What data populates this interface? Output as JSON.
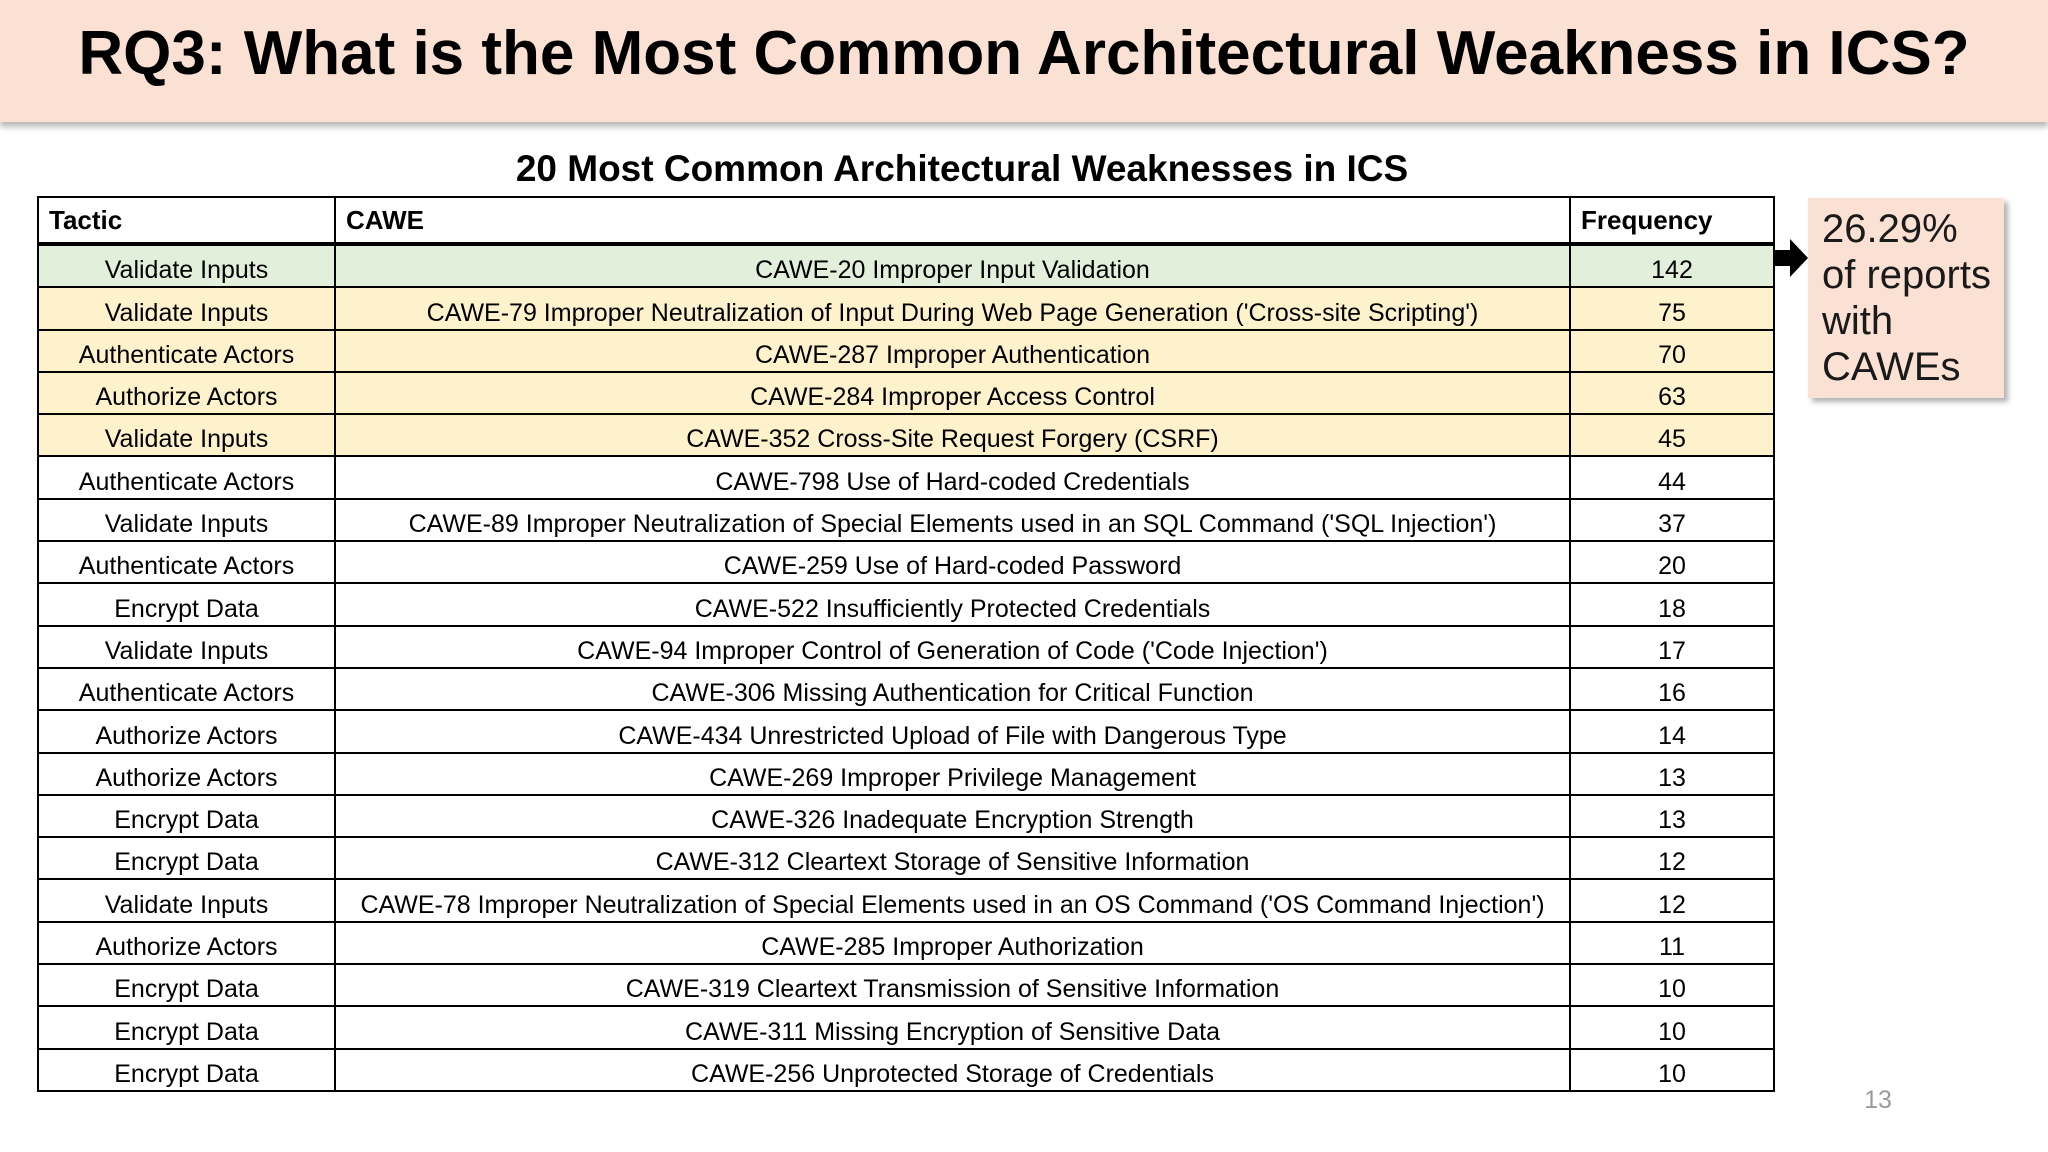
{
  "slide": {
    "title": "RQ3: What is the Most Common Architectural Weakness in ICS?",
    "page_number": "13"
  },
  "table": {
    "caption": "20 Most Common Architectural Weaknesses in ICS",
    "headers": [
      "Tactic",
      "CAWE",
      "Frequency"
    ],
    "rows": [
      {
        "tactic": "Validate Inputs",
        "cawe": "CAWE-20 Improper Input Validation",
        "frequency": "142",
        "highlight": "green"
      },
      {
        "tactic": "Validate Inputs",
        "cawe": "CAWE-79 Improper Neutralization of Input During Web Page Generation ('Cross-site Scripting')",
        "frequency": "75",
        "highlight": "yellow"
      },
      {
        "tactic": "Authenticate Actors",
        "cawe": "CAWE-287 Improper Authentication",
        "frequency": "70",
        "highlight": "yellow"
      },
      {
        "tactic": "Authorize Actors",
        "cawe": "CAWE-284 Improper Access Control",
        "frequency": "63",
        "highlight": "yellow"
      },
      {
        "tactic": "Validate Inputs",
        "cawe": "CAWE-352 Cross-Site Request Forgery (CSRF)",
        "frequency": "45",
        "highlight": "yellow"
      },
      {
        "tactic": "Authenticate Actors",
        "cawe": "CAWE-798 Use of Hard-coded Credentials",
        "frequency": "44",
        "highlight": "none"
      },
      {
        "tactic": "Validate Inputs",
        "cawe": "CAWE-89 Improper Neutralization of Special Elements used in an SQL Command ('SQL Injection')",
        "frequency": "37",
        "highlight": "none"
      },
      {
        "tactic": "Authenticate Actors",
        "cawe": "CAWE-259 Use of Hard-coded Password",
        "frequency": "20",
        "highlight": "none"
      },
      {
        "tactic": "Encrypt Data",
        "cawe": "CAWE-522 Insufficiently Protected Credentials",
        "frequency": "18",
        "highlight": "none"
      },
      {
        "tactic": "Validate Inputs",
        "cawe": "CAWE-94 Improper Control of Generation of Code ('Code Injection')",
        "frequency": "17",
        "highlight": "none"
      },
      {
        "tactic": "Authenticate Actors",
        "cawe": "CAWE-306 Missing Authentication for Critical Function",
        "frequency": "16",
        "highlight": "none"
      },
      {
        "tactic": "Authorize Actors",
        "cawe": "CAWE-434 Unrestricted Upload of File with Dangerous Type",
        "frequency": "14",
        "highlight": "none"
      },
      {
        "tactic": "Authorize Actors",
        "cawe": "CAWE-269 Improper Privilege Management",
        "frequency": "13",
        "highlight": "none"
      },
      {
        "tactic": "Encrypt Data",
        "cawe": "CAWE-326 Inadequate Encryption Strength",
        "frequency": "13",
        "highlight": "none"
      },
      {
        "tactic": "Encrypt Data",
        "cawe": "CAWE-312 Cleartext Storage of Sensitive Information",
        "frequency": "12",
        "highlight": "none"
      },
      {
        "tactic": "Validate Inputs",
        "cawe": "CAWE-78 Improper Neutralization of Special Elements used in an OS Command ('OS Command Injection')",
        "frequency": "12",
        "highlight": "none"
      },
      {
        "tactic": "Authorize Actors",
        "cawe": "CAWE-285 Improper Authorization",
        "frequency": "11",
        "highlight": "none"
      },
      {
        "tactic": "Encrypt Data",
        "cawe": "CAWE-319 Cleartext Transmission of Sensitive Information",
        "frequency": "10",
        "highlight": "none"
      },
      {
        "tactic": "Encrypt Data",
        "cawe": "CAWE-311 Missing Encryption of Sensitive Data",
        "frequency": "10",
        "highlight": "none"
      },
      {
        "tactic": "Encrypt Data",
        "cawe": "CAWE-256 Unprotected Storage of Credentials",
        "frequency": "10",
        "highlight": "none"
      }
    ]
  },
  "callout": {
    "lines": [
      "26.29%",
      "of reports",
      "with",
      "CAWEs"
    ]
  },
  "colors": {
    "header_band": "#fbe0d4",
    "highlight_green": "#e2efdb",
    "highlight_yellow": "#fef2cc"
  },
  "icons": {
    "callout_pointer": "arrow-right-icon"
  }
}
